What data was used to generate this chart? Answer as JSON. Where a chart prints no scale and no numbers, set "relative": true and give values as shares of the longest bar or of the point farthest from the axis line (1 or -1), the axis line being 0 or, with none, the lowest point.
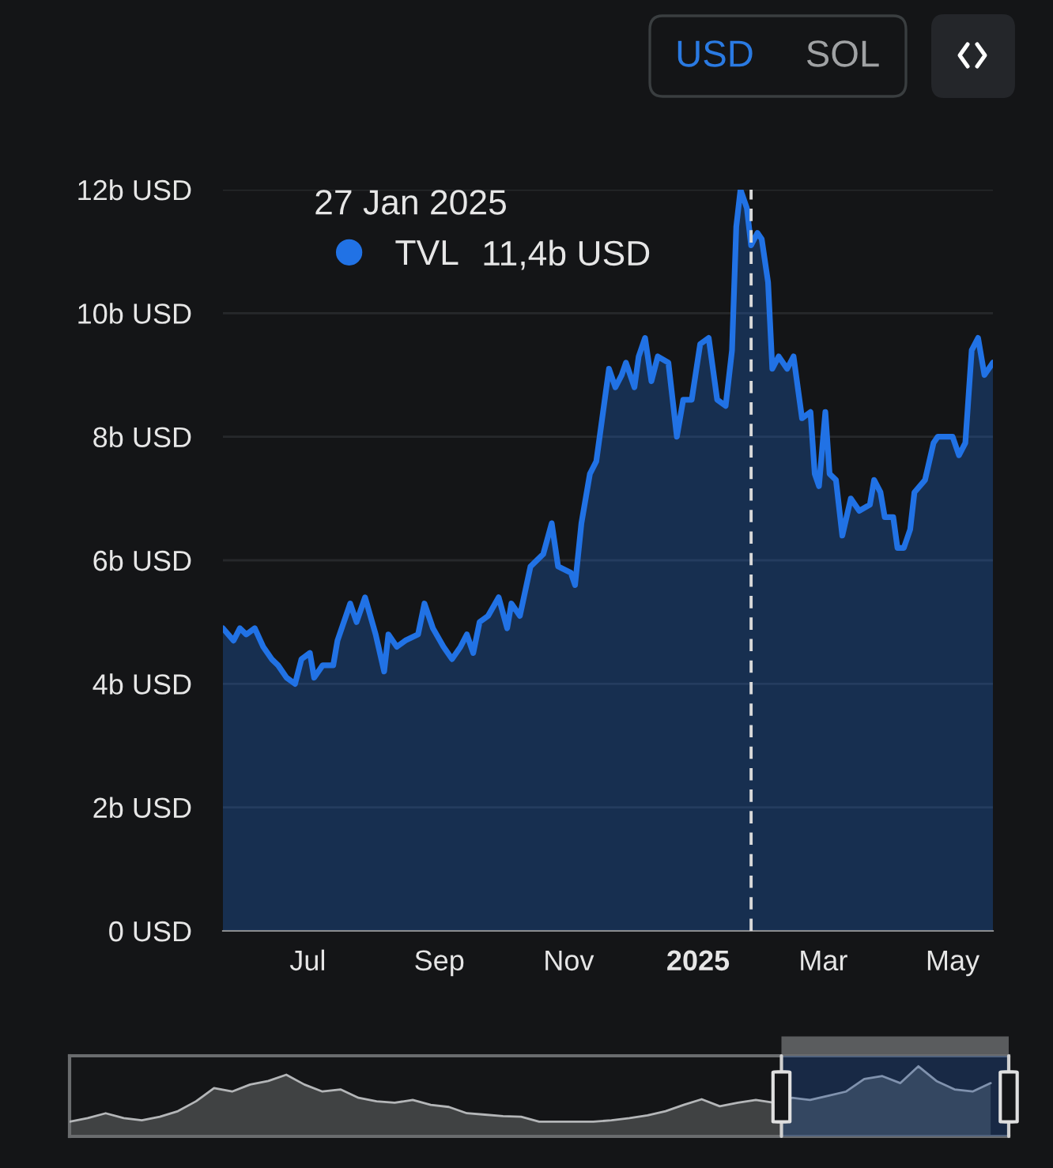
{
  "chart_data": [
    {
      "type": "area",
      "legend_title": "27 Jan 2025",
      "legend": "top left",
      "grid": "y",
      "xlim": [
        "2024-05-22",
        "2025-05-20"
      ],
      "xticks": [
        {
          "value": "2024-07-01",
          "label": "Jul"
        },
        {
          "value": "2024-09-01",
          "label": "Sep"
        },
        {
          "value": "2024-11-01",
          "label": "Nov"
        },
        {
          "value": "2025-01-01",
          "label": "2025"
        },
        {
          "value": "2025-03-01",
          "label": "Mar"
        },
        {
          "value": "2025-05-01",
          "label": "May"
        }
      ],
      "ylim": [
        0,
        12
      ],
      "yticks": [
        {
          "value": 0,
          "label": "0 USD"
        },
        {
          "value": 2,
          "label": "2b USD"
        },
        {
          "value": 4,
          "label": "4b USD"
        },
        {
          "value": 6,
          "label": "6b USD"
        },
        {
          "value": 8,
          "label": "8b USD"
        },
        {
          "value": 10,
          "label": "10b USD"
        },
        {
          "value": 12,
          "label": "12b USD"
        }
      ],
      "ref_lines": [
        {
          "axis": "x",
          "value": "2025-01-26",
          "line_style": "dashed",
          "color": "#d9d9d9"
        }
      ],
      "annotations": [
        "USD",
        "SOL",
        "11,4b USD"
      ],
      "series": [
        {
          "name": "TVL",
          "color": "#2172e5",
          "x": [
            "2024-05-22",
            "2024-05-27",
            "2024-05-30",
            "2024-06-02",
            "2024-06-06",
            "2024-06-10",
            "2024-06-14",
            "2024-06-17",
            "2024-06-21",
            "2024-06-25",
            "2024-06-28",
            "2024-07-02",
            "2024-07-04",
            "2024-07-08",
            "2024-07-13",
            "2024-07-15",
            "2024-07-21",
            "2024-07-24",
            "2024-07-28",
            "2024-08-02",
            "2024-08-06",
            "2024-08-08",
            "2024-08-12",
            "2024-08-16",
            "2024-08-22",
            "2024-08-25",
            "2024-08-29",
            "2024-09-03",
            "2024-09-07",
            "2024-09-11",
            "2024-09-14",
            "2024-09-17",
            "2024-09-20",
            "2024-09-24",
            "2024-09-29",
            "2024-10-03",
            "2024-10-05",
            "2024-10-09",
            "2024-10-14",
            "2024-10-20",
            "2024-10-24",
            "2024-10-27",
            "2024-11-02",
            "2024-11-04",
            "2024-11-07",
            "2024-11-11",
            "2024-11-14",
            "2024-11-18",
            "2024-11-20",
            "2024-11-23",
            "2024-11-26",
            "2024-11-28",
            "2024-12-02",
            "2024-12-04",
            "2024-12-07",
            "2024-12-10",
            "2024-12-13",
            "2024-12-18",
            "2024-12-22",
            "2024-12-25",
            "2024-12-29",
            "2025-01-02",
            "2025-01-06",
            "2025-01-10",
            "2025-01-14",
            "2025-01-17",
            "2025-01-19",
            "2025-01-21",
            "2025-01-24",
            "2025-01-26",
            "2025-01-29",
            "2025-01-31",
            "2025-02-03",
            "2025-02-05",
            "2025-02-08",
            "2025-02-12",
            "2025-02-15",
            "2025-02-19",
            "2025-02-23",
            "2025-02-25",
            "2025-02-27",
            "2025-03-02",
            "2025-03-04",
            "2025-03-07",
            "2025-03-10",
            "2025-03-14",
            "2025-03-18",
            "2025-03-23",
            "2025-03-25",
            "2025-03-28",
            "2025-03-30",
            "2025-04-03",
            "2025-04-05",
            "2025-04-08",
            "2025-04-11",
            "2025-04-13",
            "2025-04-18",
            "2025-04-22",
            "2025-04-24",
            "2025-05-01",
            "2025-05-04",
            "2025-05-07",
            "2025-05-10",
            "2025-05-13",
            "2025-05-16",
            "2025-05-20"
          ],
          "values": [
            4.9,
            4.7,
            4.9,
            4.8,
            4.9,
            4.6,
            4.4,
            4.3,
            4.1,
            4.0,
            4.4,
            4.5,
            4.1,
            4.3,
            4.3,
            4.7,
            5.3,
            5.0,
            5.4,
            4.8,
            4.2,
            4.8,
            4.6,
            4.7,
            4.8,
            5.3,
            4.9,
            4.6,
            4.4,
            4.6,
            4.8,
            4.5,
            5.0,
            5.1,
            5.4,
            4.9,
            5.3,
            5.1,
            5.9,
            6.1,
            6.6,
            5.9,
            5.8,
            5.6,
            6.6,
            7.4,
            7.6,
            8.6,
            9.1,
            8.8,
            9.0,
            9.2,
            8.8,
            9.3,
            9.6,
            8.9,
            9.3,
            9.2,
            8.0,
            8.6,
            8.6,
            9.5,
            9.6,
            8.6,
            8.5,
            9.4,
            11.4,
            12.0,
            11.7,
            11.1,
            11.3,
            11.2,
            10.5,
            9.1,
            9.3,
            9.1,
            9.3,
            8.3,
            8.4,
            7.4,
            7.2,
            8.4,
            7.4,
            7.3,
            6.4,
            7.0,
            6.8,
            6.9,
            7.3,
            7.1,
            6.7,
            6.7,
            6.2,
            6.2,
            6.5,
            7.1,
            7.3,
            7.9,
            8.0,
            8.0,
            7.7,
            7.9,
            9.4,
            9.6,
            9.0,
            9.2
          ]
        }
      ]
    },
    {
      "type": "area",
      "relative": true,
      "categories": [
        null,
        null,
        null,
        null,
        null,
        null,
        null,
        null,
        null,
        null,
        null,
        null,
        null,
        null,
        null,
        null,
        null,
        null,
        null,
        null,
        null,
        null,
        null,
        null,
        null,
        null,
        null,
        null,
        null,
        null,
        null,
        null,
        null,
        null,
        null,
        null,
        null,
        null,
        null,
        null,
        null,
        null,
        null,
        null,
        null,
        null,
        null,
        null,
        null,
        null,
        null,
        null,
        null
      ],
      "series": [
        {
          "color": "#b4b6b8",
          "values": [
            0.21,
            0.26,
            0.33,
            0.26,
            0.23,
            0.28,
            0.36,
            0.5,
            0.69,
            0.64,
            0.74,
            0.79,
            0.88,
            0.74,
            0.64,
            0.67,
            0.55,
            0.5,
            0.48,
            0.52,
            0.45,
            0.42,
            0.33,
            0.31,
            0.29,
            0.28,
            0.21,
            0.21,
            0.21,
            0.21,
            0.23,
            0.26,
            0.3,
            0.36,
            0.45,
            0.53,
            0.43,
            0.48,
            0.52,
            0.48,
            0.55,
            0.52,
            0.58,
            0.64,
            0.82,
            0.86,
            0.76,
            1.0,
            0.79,
            0.67,
            0.64,
            0.76,
            null
          ]
        }
      ]
    }
  ]
}
